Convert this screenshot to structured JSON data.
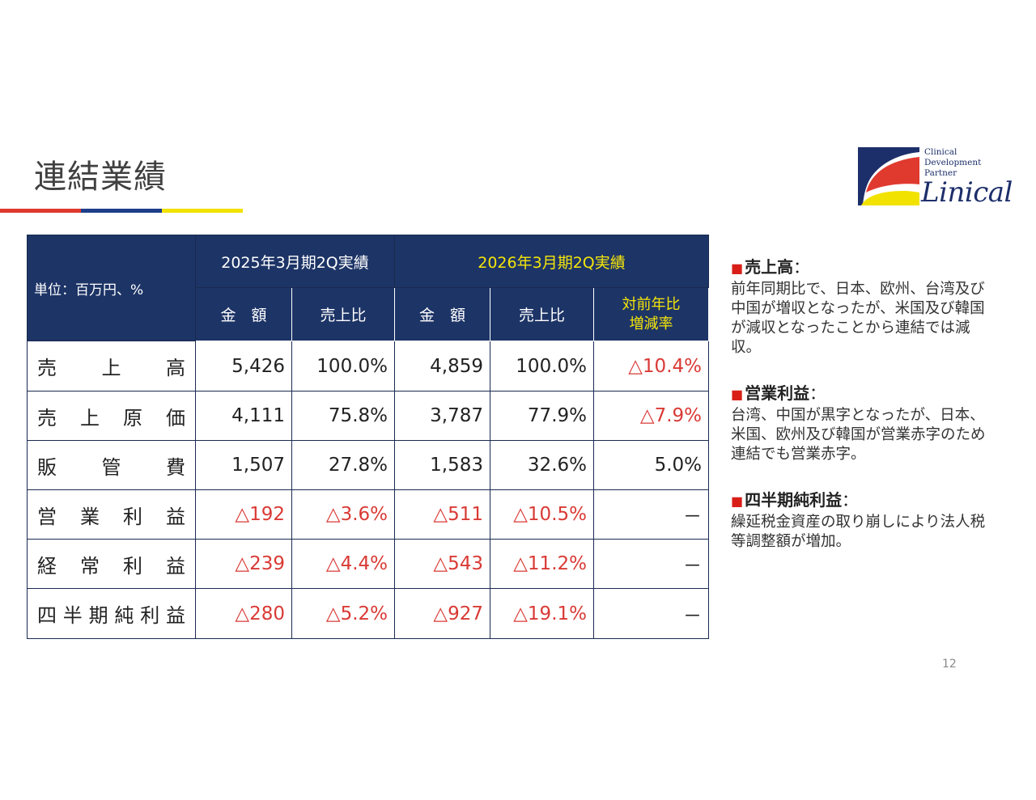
{
  "title": "連結業績",
  "logo": {
    "line1": "Clinical",
    "line2": "Development",
    "line3": "Partner",
    "name": "Linical"
  },
  "table": {
    "unit_label": "単位：百万円、%",
    "period_2025": "2025年3月期2Q実績",
    "period_2026": "2026年3月期2Q実績",
    "col_amount": "金　額",
    "col_ratio": "売上比",
    "col_yoy_line1": "対前年比",
    "col_yoy_line2": "増減率",
    "rows": [
      {
        "label": "売上高",
        "a2025": "5,426",
        "r2025": "100.0%",
        "a2026": "4,859",
        "r2026": "100.0%",
        "yoy": "△10.4%"
      },
      {
        "label": "売上原価",
        "a2025": "4,111",
        "r2025": "75.8%",
        "a2026": "3,787",
        "r2026": "77.9%",
        "yoy": "△7.9%"
      },
      {
        "label": "販管費",
        "a2025": "1,507",
        "r2025": "27.8%",
        "a2026": "1,583",
        "r2026": "32.6%",
        "yoy": "5.0%"
      },
      {
        "label": "営業利益",
        "a2025": "△192",
        "r2025": "△3.6%",
        "a2026": "△511",
        "r2026": "△10.5%",
        "yoy": "－"
      },
      {
        "label": "経常利益",
        "a2025": "△239",
        "r2025": "△4.4%",
        "a2026": "△543",
        "r2026": "△11.2%",
        "yoy": "－"
      },
      {
        "label": "四半期純利益",
        "a2025": "△280",
        "r2025": "△5.2%",
        "a2026": "△927",
        "r2026": "△19.1%",
        "yoy": "－"
      }
    ]
  },
  "notes": [
    {
      "heading": "売上高",
      "body": "前年同期比で、日本、欧州、台湾及び中国が増収となったが、米国及び韓国が減収となったことから連結では減収。"
    },
    {
      "heading": "営業利益",
      "body": "台湾、中国が黒字となったが、日本、米国、欧州及び韓国が営業赤字のため連結でも営業赤字。"
    },
    {
      "heading": "四半期純利益",
      "body": "繰延税金資産の取り崩しにより法人税等調整額が増加。"
    }
  ],
  "page_number": "12",
  "colors": {
    "header_bg": "#1d3466",
    "negative": "#d93a35",
    "highlight_yellow": "#f5e60a",
    "rule_red": "#e03a2f",
    "rule_blue": "#1d3f8a",
    "rule_yellow": "#f2e200"
  }
}
